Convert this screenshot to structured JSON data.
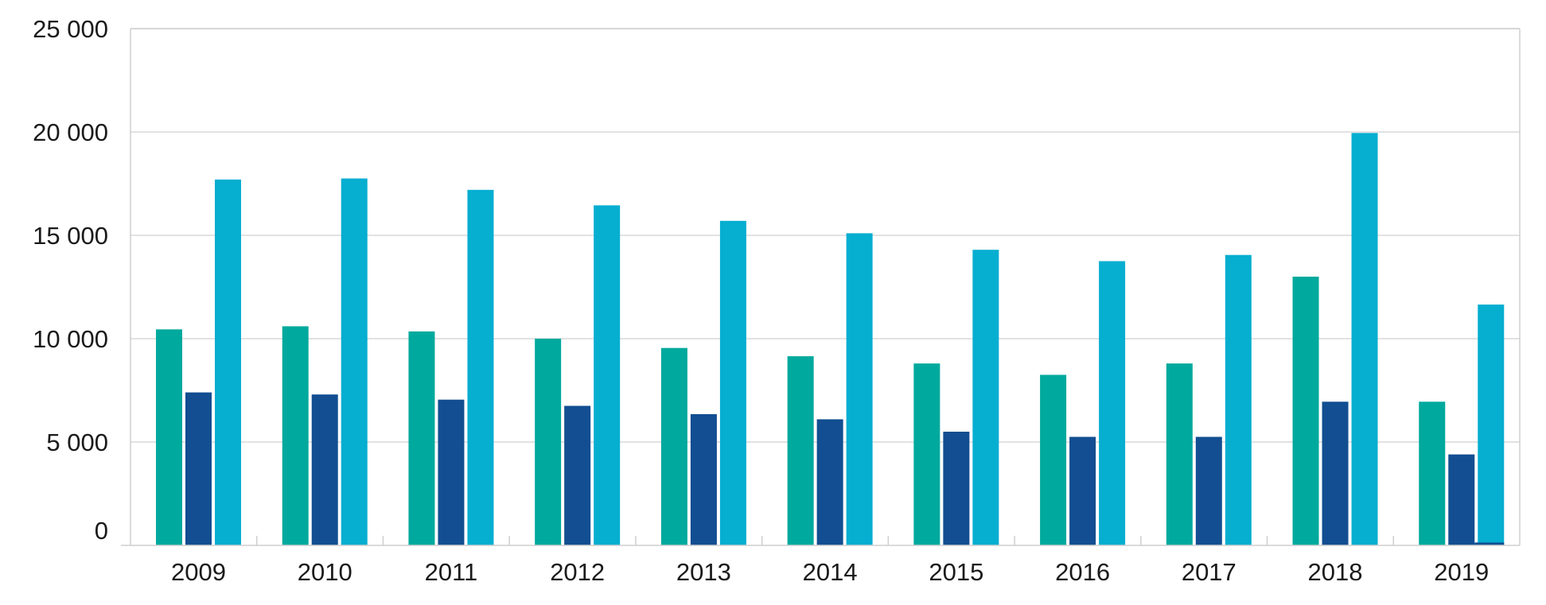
{
  "chart_data": {
    "type": "bar",
    "title": "",
    "xlabel": "",
    "ylabel": "",
    "categories": [
      "2009",
      "2010",
      "2011",
      "2012",
      "2013",
      "2014",
      "2015",
      "2016",
      "2017",
      "2018",
      "2019"
    ],
    "series": [
      {
        "color": "#00a99d",
        "values": [
          10450,
          10600,
          10350,
          10000,
          9550,
          9150,
          8800,
          8250,
          8800,
          13000,
          6950
        ]
      },
      {
        "color": "#124e91",
        "values": [
          7400,
          7300,
          7050,
          6750,
          6350,
          6100,
          5500,
          5250,
          5250,
          6950,
          4400
        ]
      },
      {
        "color": "#06aed0",
        "values": [
          17700,
          17750,
          17200,
          16450,
          15700,
          15100,
          14300,
          13750,
          14050,
          19950,
          11650
        ]
      }
    ],
    "extra_marks": [
      {
        "category": "2019",
        "color": "#124e91",
        "value": 100
      }
    ],
    "y_ticks": [
      "0",
      "5 000",
      "10 000",
      "15 000",
      "20 000",
      "25 000"
    ],
    "y_tick_values": [
      0,
      5000,
      10000,
      15000,
      20000,
      25000
    ],
    "ylim": [
      0,
      25000
    ],
    "grid": true,
    "legend": "none"
  }
}
